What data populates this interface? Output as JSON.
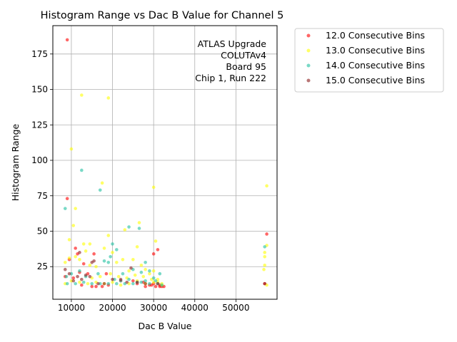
{
  "chart_data": {
    "type": "scatter",
    "title": "Histogram Range vs Dac B Value for Channel 5",
    "xlabel": "Dac B Value",
    "ylabel": "Histogram Range",
    "xlim": [
      5500,
      60000
    ],
    "ylim": [
      2,
      195
    ],
    "xticks": [
      10000,
      20000,
      30000,
      40000,
      50000
    ],
    "xtick_labels": [
      "10000",
      "20000",
      "30000",
      "40000",
      "50000"
    ],
    "yticks": [
      25,
      50,
      75,
      100,
      125,
      150,
      175
    ],
    "ytick_labels": [
      "25",
      "50",
      "75",
      "100",
      "125",
      "150",
      "175"
    ],
    "grid": true,
    "legend_position": "outside-top-right",
    "annotation": [
      "ATLAS Upgrade",
      "COLUTAv4",
      "Board 95",
      "Chip 1, Run 222"
    ],
    "series": [
      {
        "name": "12.0 Consecutive Bins",
        "color": "#ff0000",
        "points": [
          [
            9000,
            185
          ],
          [
            9000,
            73
          ],
          [
            11500,
            34
          ],
          [
            11000,
            38
          ],
          [
            14000,
            20
          ],
          [
            15500,
            34
          ],
          [
            13000,
            27
          ],
          [
            12000,
            21
          ],
          [
            10500,
            17
          ],
          [
            18500,
            20
          ],
          [
            25000,
            15
          ],
          [
            28000,
            11
          ],
          [
            29000,
            12
          ],
          [
            30000,
            34
          ],
          [
            31000,
            37
          ],
          [
            30000,
            13
          ],
          [
            31500,
            11
          ],
          [
            32500,
            11
          ],
          [
            57500,
            48
          ],
          [
            57000,
            13
          ],
          [
            8500,
            18
          ],
          [
            9500,
            30
          ],
          [
            12500,
            12
          ],
          [
            15000,
            11
          ],
          [
            16000,
            11
          ],
          [
            17500,
            11
          ],
          [
            19000,
            12
          ],
          [
            22000,
            15
          ],
          [
            26000,
            13
          ],
          [
            27500,
            14
          ],
          [
            29500,
            12
          ],
          [
            30500,
            11
          ],
          [
            31500,
            12
          ],
          [
            32000,
            11
          ]
        ]
      },
      {
        "name": "13.0 Consecutive Bins",
        "color": "#ffff00",
        "points": [
          [
            12500,
            146
          ],
          [
            19000,
            144
          ],
          [
            10000,
            108
          ],
          [
            17500,
            84
          ],
          [
            11000,
            66
          ],
          [
            10500,
            54
          ],
          [
            9500,
            44
          ],
          [
            13000,
            41
          ],
          [
            14500,
            41
          ],
          [
            19000,
            47
          ],
          [
            23000,
            51
          ],
          [
            26500,
            56
          ],
          [
            26000,
            39
          ],
          [
            30000,
            81
          ],
          [
            30500,
            43
          ],
          [
            57500,
            82
          ],
          [
            57500,
            40
          ],
          [
            57000,
            35
          ],
          [
            57000,
            32
          ],
          [
            57000,
            26
          ],
          [
            56800,
            23
          ],
          [
            57500,
            12
          ],
          [
            8500,
            28
          ],
          [
            9500,
            31
          ],
          [
            11000,
            32
          ],
          [
            12000,
            30
          ],
          [
            13500,
            36
          ],
          [
            14500,
            26
          ],
          [
            16000,
            25
          ],
          [
            18000,
            38
          ],
          [
            20000,
            35
          ],
          [
            21000,
            28
          ],
          [
            22500,
            30
          ],
          [
            24000,
            22
          ],
          [
            25000,
            30
          ],
          [
            27000,
            26
          ],
          [
            28000,
            23
          ],
          [
            29000,
            20
          ],
          [
            30000,
            22
          ],
          [
            31000,
            16
          ],
          [
            32000,
            12
          ],
          [
            8500,
            13
          ],
          [
            10000,
            15
          ],
          [
            12000,
            14
          ],
          [
            14000,
            13
          ],
          [
            16000,
            14
          ],
          [
            18000,
            13
          ],
          [
            20000,
            14
          ],
          [
            22000,
            12
          ],
          [
            24000,
            13
          ],
          [
            26000,
            15
          ],
          [
            28000,
            13
          ],
          [
            30000,
            14
          ],
          [
            32000,
            13
          ],
          [
            15000,
            17
          ],
          [
            17000,
            18
          ],
          [
            19500,
            20
          ],
          [
            21500,
            18
          ],
          [
            23500,
            17
          ],
          [
            25500,
            19
          ],
          [
            27500,
            18
          ],
          [
            29500,
            16
          ],
          [
            31000,
            14
          ]
        ]
      },
      {
        "name": "14.0 Consecutive Bins",
        "color": "#20c0a0",
        "points": [
          [
            12500,
            93
          ],
          [
            17000,
            79
          ],
          [
            8500,
            66
          ],
          [
            24000,
            53
          ],
          [
            26500,
            52
          ],
          [
            20000,
            41
          ],
          [
            8800,
            18
          ],
          [
            10000,
            20
          ],
          [
            12000,
            22
          ],
          [
            13500,
            18
          ],
          [
            16500,
            20
          ],
          [
            18000,
            29
          ],
          [
            19000,
            28
          ],
          [
            19500,
            32
          ],
          [
            21000,
            37
          ],
          [
            22500,
            20
          ],
          [
            25000,
            23
          ],
          [
            27000,
            21
          ],
          [
            28000,
            28
          ],
          [
            29000,
            22
          ],
          [
            30500,
            15
          ],
          [
            31500,
            20
          ],
          [
            57000,
            39
          ],
          [
            9000,
            13
          ],
          [
            11000,
            13
          ],
          [
            13000,
            14
          ],
          [
            15000,
            13
          ],
          [
            17000,
            13
          ],
          [
            19000,
            13
          ],
          [
            21000,
            13
          ],
          [
            23000,
            13
          ],
          [
            25000,
            13
          ],
          [
            27000,
            14
          ],
          [
            29000,
            13
          ],
          [
            31000,
            13
          ],
          [
            32000,
            12
          ],
          [
            20500,
            16
          ],
          [
            22000,
            15
          ],
          [
            24000,
            16
          ],
          [
            26000,
            14
          ],
          [
            28000,
            15
          ],
          [
            30000,
            17
          ]
        ]
      },
      {
        "name": "15.0 Consecutive Bins",
        "color": "#8b1a1a",
        "points": [
          [
            8500,
            23
          ],
          [
            9500,
            20
          ],
          [
            10500,
            15
          ],
          [
            11500,
            18
          ],
          [
            12500,
            16
          ],
          [
            13500,
            19
          ],
          [
            14500,
            18
          ],
          [
            15500,
            29
          ],
          [
            16500,
            13
          ],
          [
            18000,
            13
          ],
          [
            20000,
            16
          ],
          [
            22000,
            16
          ],
          [
            23500,
            14
          ],
          [
            24500,
            24
          ],
          [
            26000,
            14
          ],
          [
            28000,
            13
          ],
          [
            31000,
            13
          ],
          [
            57000,
            13
          ],
          [
            12000,
            35
          ],
          [
            15000,
            28
          ]
        ]
      }
    ]
  }
}
